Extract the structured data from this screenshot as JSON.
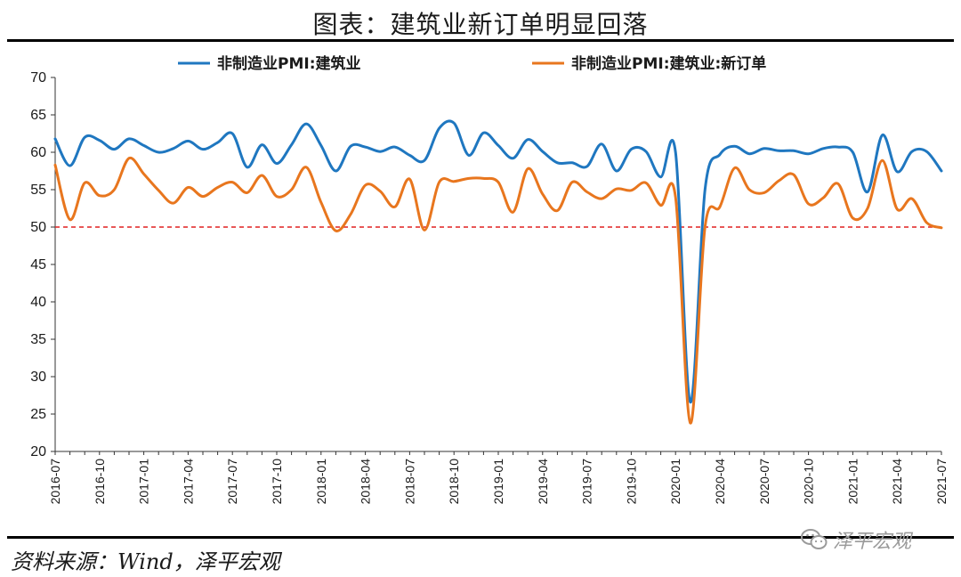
{
  "title": "图表：建筑业新订单明显回落",
  "source": "资料来源：Wind，泽平宏观",
  "watermark": "泽平宏观",
  "chart_data": {
    "type": "line",
    "title": "图表：建筑业新订单明显回落",
    "ylim": [
      20,
      70
    ],
    "yticks": [
      20,
      25,
      30,
      35,
      40,
      45,
      50,
      55,
      60,
      65,
      70
    ],
    "xtick_labels": [
      "2016-07",
      "2016-10",
      "2017-01",
      "2017-04",
      "2017-07",
      "2017-10",
      "2018-01",
      "2018-04",
      "2018-07",
      "2018-10",
      "2019-01",
      "2019-04",
      "2019-07",
      "2019-10",
      "2020-01",
      "2020-04",
      "2020-07",
      "2020-10",
      "2021-01",
      "2021-04",
      "2021-07"
    ],
    "x": [
      "2016-07",
      "2016-08",
      "2016-09",
      "2016-10",
      "2016-11",
      "2016-12",
      "2017-01",
      "2017-02",
      "2017-03",
      "2017-04",
      "2017-05",
      "2017-06",
      "2017-07",
      "2017-08",
      "2017-09",
      "2017-10",
      "2017-11",
      "2017-12",
      "2018-01",
      "2018-02",
      "2018-03",
      "2018-04",
      "2018-05",
      "2018-06",
      "2018-07",
      "2018-08",
      "2018-09",
      "2018-10",
      "2018-11",
      "2018-12",
      "2019-01",
      "2019-02",
      "2019-03",
      "2019-04",
      "2019-05",
      "2019-06",
      "2019-07",
      "2019-08",
      "2019-09",
      "2019-10",
      "2019-11",
      "2019-12",
      "2020-01",
      "2020-02",
      "2020-03",
      "2020-04",
      "2020-05",
      "2020-06",
      "2020-07",
      "2020-08",
      "2020-09",
      "2020-10",
      "2020-11",
      "2020-12",
      "2021-01",
      "2021-02",
      "2021-03",
      "2021-04",
      "2021-05",
      "2021-06",
      "2021-07"
    ],
    "series": [
      {
        "name": "非制造业PMI:建筑业",
        "color": "#1f77c0",
        "values": [
          61.8,
          58.2,
          62.0,
          61.6,
          60.4,
          61.8,
          60.9,
          60.0,
          60.5,
          61.5,
          60.4,
          61.3,
          62.5,
          58.0,
          61.0,
          58.5,
          61.0,
          63.8,
          60.9,
          57.5,
          60.8,
          60.7,
          60.1,
          60.7,
          59.6,
          58.9,
          63.2,
          63.9,
          59.6,
          62.6,
          60.9,
          59.2,
          61.7,
          60.1,
          58.6,
          58.6,
          58.1,
          61.1,
          57.5,
          60.4,
          60.1,
          56.7,
          60.0,
          26.6,
          55.1,
          59.7,
          60.8,
          59.8,
          60.5,
          60.2,
          60.2,
          59.8,
          60.5,
          60.7,
          60.0,
          54.7,
          62.3,
          57.4,
          60.1,
          60.1,
          57.5
        ]
      },
      {
        "name": "非制造业PMI:建筑业:新订单",
        "color": "#e8761e",
        "values": [
          58.3,
          51.0,
          55.9,
          54.2,
          55.0,
          59.2,
          57.1,
          54.9,
          53.2,
          55.3,
          54.1,
          55.3,
          56.0,
          54.6,
          56.9,
          54.1,
          55.0,
          58.0,
          53.3,
          49.5,
          51.7,
          55.6,
          54.8,
          52.7,
          56.4,
          49.6,
          56.0,
          56.1,
          56.5,
          56.5,
          56.0,
          52.0,
          57.8,
          54.4,
          52.2,
          56.0,
          54.7,
          53.8,
          55.1,
          54.9,
          55.9,
          52.9,
          54.0,
          23.8,
          50.1,
          52.7,
          57.9,
          55.0,
          54.6,
          56.2,
          57.0,
          53.1,
          53.9,
          55.8,
          51.2,
          52.5,
          58.9,
          52.4,
          53.8,
          50.6,
          49.9
        ]
      }
    ],
    "reference_line": {
      "y": 50,
      "color": "#e02020",
      "style": "dashed"
    },
    "legend_position": "top-center",
    "grid": false
  }
}
